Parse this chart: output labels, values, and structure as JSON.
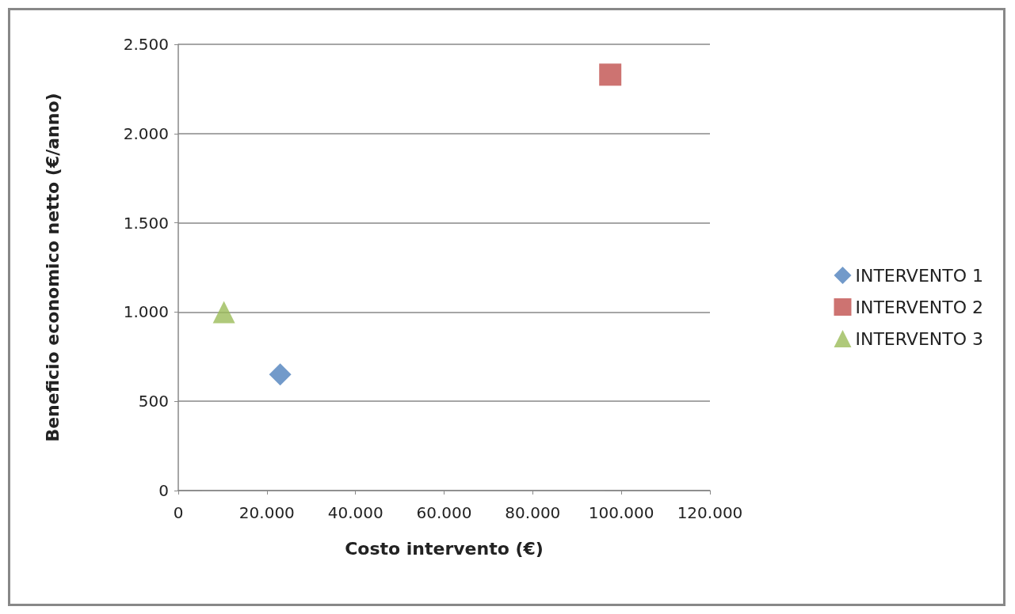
{
  "chart_data": {
    "type": "scatter",
    "xlabel": "Costo intervento (€)",
    "ylabel": "Beneficio economico netto (€/anno)",
    "series": [
      {
        "name": "INTERVENTO 1",
        "color": "#4f81bd",
        "marker": "diamond",
        "x": [
          23000
        ],
        "values": [
          650
        ]
      },
      {
        "name": "INTERVENTO 2",
        "color": "#c0504d",
        "marker": "square",
        "x": [
          97500
        ],
        "values": [
          2330
        ]
      },
      {
        "name": "INTERVENTO 3",
        "color": "#9bbb59",
        "marker": "triangle",
        "x": [
          10300
        ],
        "values": [
          1000
        ]
      }
    ],
    "xlim": [
      0,
      120000
    ],
    "xticks": [
      {
        "value": 0,
        "label": "0"
      },
      {
        "value": 20000,
        "label": "20.000"
      },
      {
        "value": 40000,
        "label": "40.000"
      },
      {
        "value": 60000,
        "label": "60.000"
      },
      {
        "value": 80000,
        "label": "80.000"
      },
      {
        "value": 100000,
        "label": "100.000"
      },
      {
        "value": 120000,
        "label": "120.000"
      }
    ],
    "ylim": [
      0,
      2500
    ],
    "yticks": [
      {
        "value": 0,
        "label": "0"
      },
      {
        "value": 500,
        "label": "500"
      },
      {
        "value": 1000,
        "label": "1.000"
      },
      {
        "value": 1500,
        "label": "1.500"
      },
      {
        "value": 2000,
        "label": "2.000"
      },
      {
        "value": 2500,
        "label": "2.500"
      }
    ],
    "grid": "y",
    "legend": "right"
  }
}
